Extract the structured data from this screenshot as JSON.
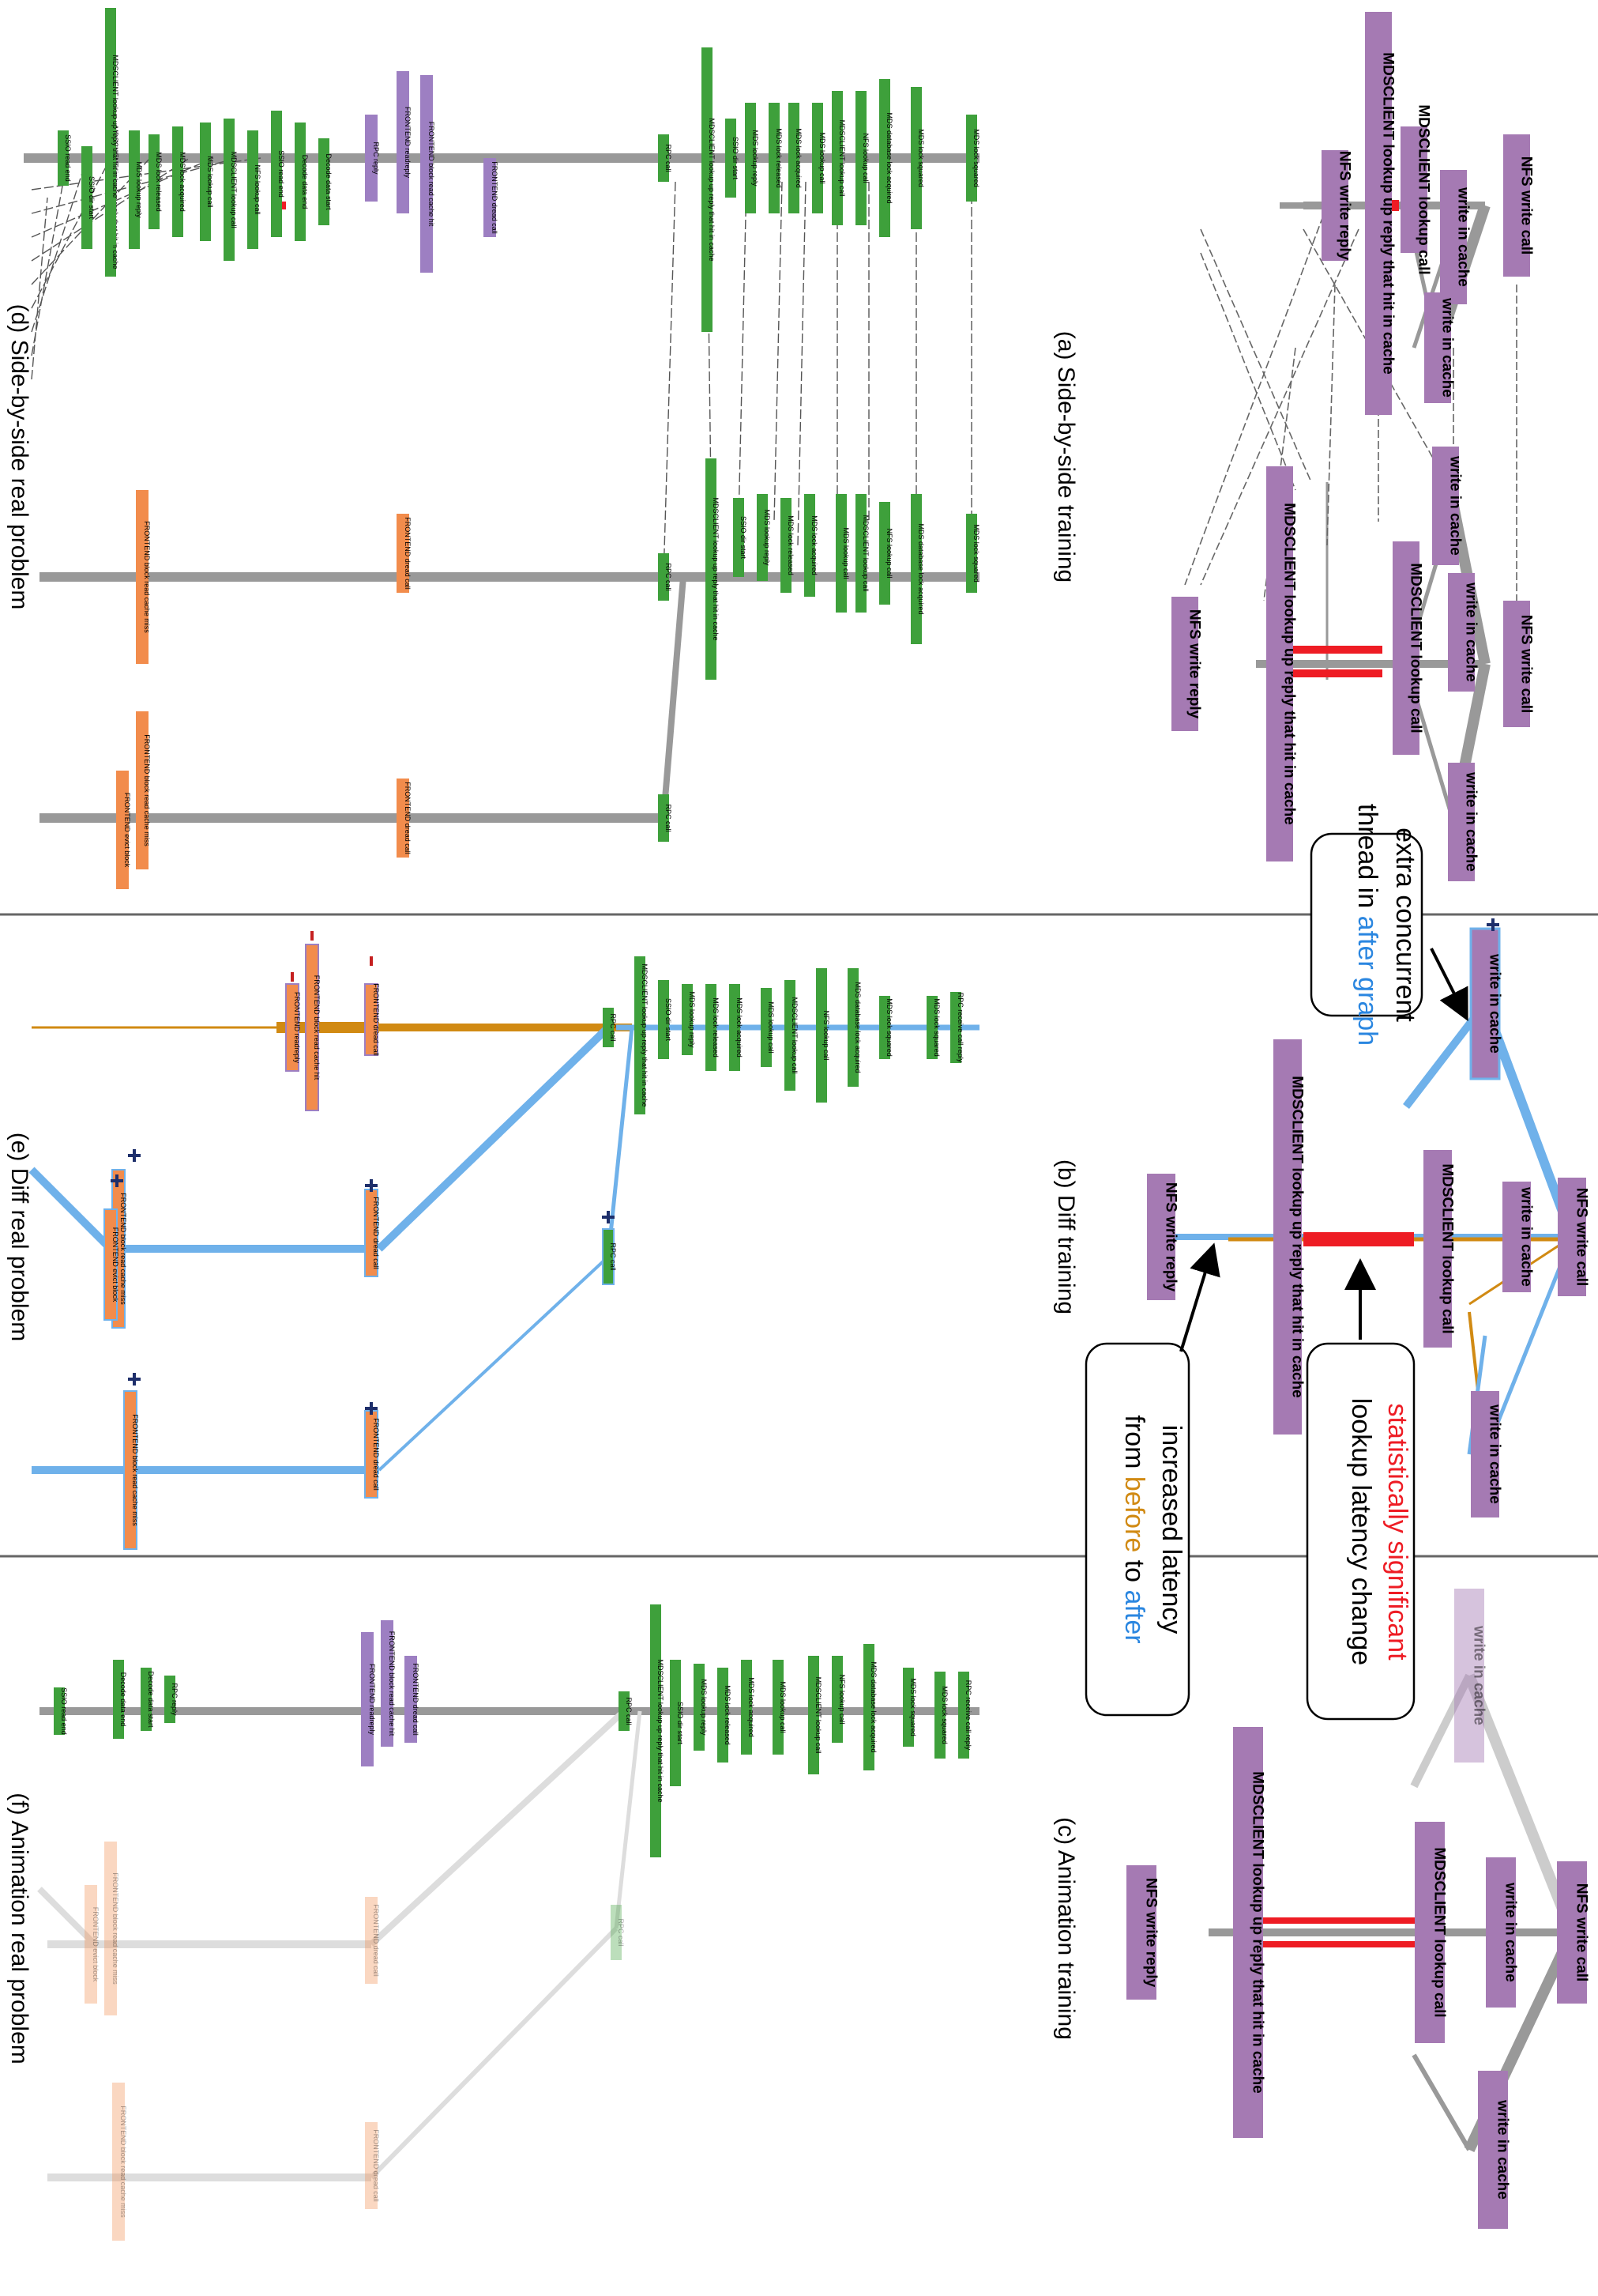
{
  "captions": {
    "a": "(a) Side-by-side training",
    "b": "(b) Diff training",
    "c": "(c) Animation training",
    "d": "(d) Side-by-side real problem",
    "e": "(e) Diff real problem",
    "f": "(f) Animation real problem"
  },
  "training_nodes": {
    "nfs_write_call": "NFS write call",
    "write_in_cache": "write in cache",
    "mdsclient_lookup_call": "MDSCLIENT lookup call",
    "mdsclient_lookup_reply": "MDSCLIENT lookup up reply that hit in cache",
    "nfs_write_reply": "NFS write reply"
  },
  "callouts": {
    "extra_thread": {
      "line1": "extra concurrent",
      "line2_pre": "thread in ",
      "line2_hl": "after graph"
    },
    "significant": {
      "line1_hl": "statistically significant",
      "line2": "lookup latency change"
    },
    "increased": {
      "line1": "increased latency",
      "line2_pre": "from ",
      "before": "before",
      "mid": " to ",
      "after": "after"
    }
  },
  "colors": {
    "purple": "#a57ab3",
    "green": "#3ea03b",
    "orange": "#f28c4c",
    "indigo": "#9d7fc2",
    "gray_edge": "#999999",
    "red_edge": "#ee1c24",
    "blue_edge": "#6fb1ea",
    "orange_edge": "#d18a13",
    "plus": "#1e2f6b"
  },
  "real_labels": {
    "rpc_call": "RPC call",
    "rpc_reply": "RPC reply",
    "rpc_receive_call": "RPC receive call",
    "mdsclient_lookup_hit": "MDSCLIENT lookup up reply that hit in cache",
    "ssl_dir_start": "SSIO dir start",
    "mdsclient_lookup_call": "MDSCLIENT lookup call",
    "mds_lookup_reply": "MDS lookup reply",
    "mds_lock_released": "MDS lock released",
    "mds_lookup_call": "MDS lookup call",
    "mds_lock_acquired": "MDS lock acquired",
    "mds_db_lock_acquired": "MDS database lock acquired",
    "mds_lock_squared": "MDS lock squared",
    "nfs_lookup_call": "NFS lookup call",
    "decode_data_start": "Decode data start",
    "decode_data_end": "Decode data end",
    "ssl_read_end": "SSIO read end",
    "frontend_readreply": "FRONTEND readreply",
    "frontend_block_hit": "FRONTEND block read cache hit",
    "frontend_dread_call": "FRONTEND dread call",
    "frontend_block_miss": "FRONTEND block read cache miss",
    "frontend_evict_block": "FRONTEND evict block",
    "rpc_receive_call_reply": "RPC receive call reply"
  }
}
